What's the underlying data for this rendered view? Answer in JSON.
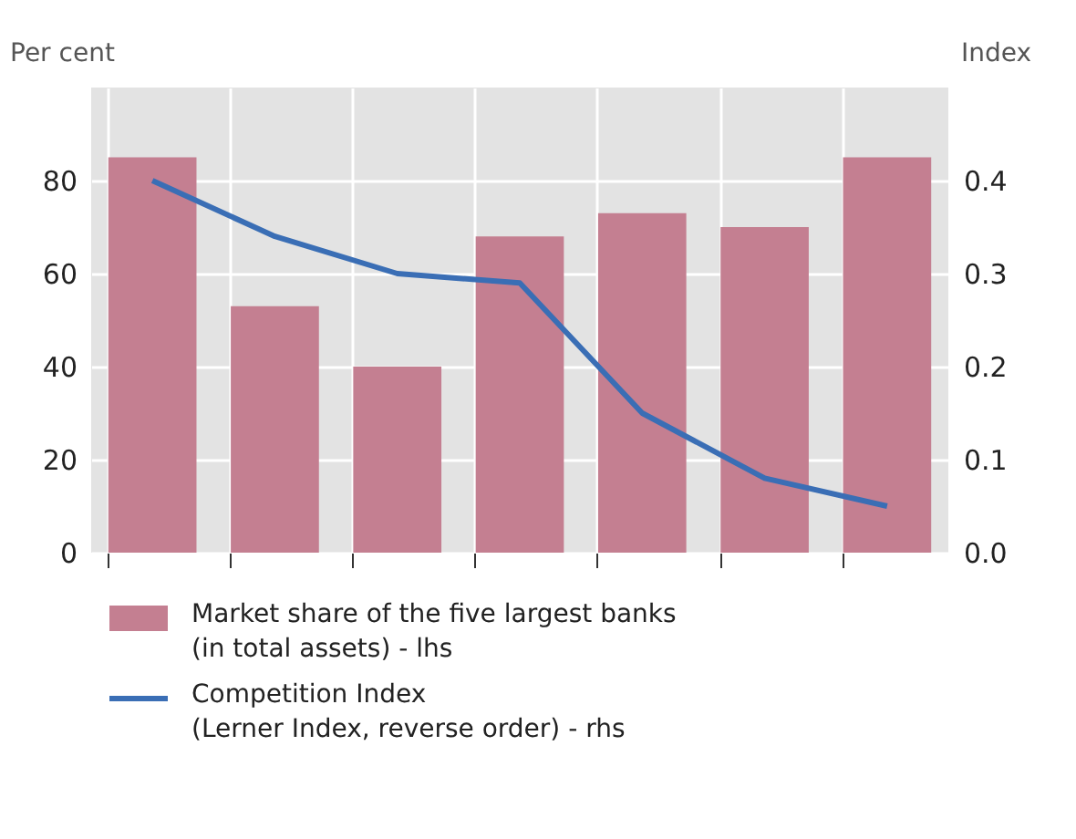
{
  "chart_data": {
    "type": "bar",
    "ylabel": "Per cent",
    "y2label": "Index",
    "categories": [
      null,
      null,
      null,
      null,
      null,
      null,
      null
    ],
    "series": [
      {
        "name": "Market share of the five largest banks (in total assets) - lhs",
        "color": "#c47f91",
        "values": [
          85,
          53,
          40,
          68,
          73,
          70,
          85
        ]
      },
      {
        "name": "Competition Index (Lerner Index, reverse order) - rhs",
        "type": "line",
        "axis": "y2",
        "color": "#3a6eb5",
        "values": [
          0.4,
          0.34,
          0.3,
          0.29,
          0.15,
          0.08,
          0.05
        ]
      }
    ],
    "ylim": [
      0,
      100
    ],
    "yticks": [
      0,
      20,
      40,
      60,
      80
    ],
    "y2lim": [
      0,
      0.5
    ],
    "y2ticks": [
      {
        "value": 0,
        "label": "0.0"
      },
      0.1,
      0.2,
      0.3,
      0.4
    ],
    "tick_labels": "y",
    "grid": true,
    "legend": "bottom"
  }
}
